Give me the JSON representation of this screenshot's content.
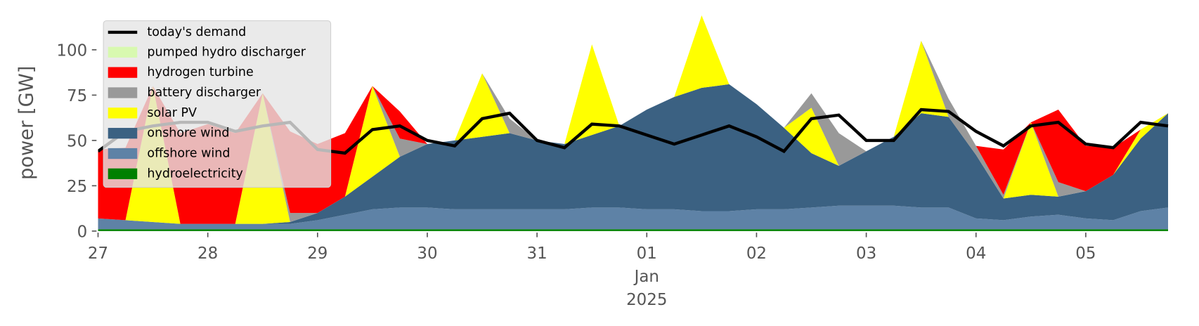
{
  "chart_data": {
    "type": "area",
    "ylabel": "power [GW]",
    "x": [
      0,
      0.25,
      0.5,
      0.75,
      1,
      1.25,
      1.5,
      1.75,
      2,
      2.25,
      2.5,
      2.75,
      3,
      3.25,
      3.5,
      3.75,
      4,
      4.25,
      4.5,
      4.75,
      5,
      5.25,
      5.5,
      5.75,
      6,
      6.25,
      6.5,
      6.75,
      7,
      7.25,
      7.5,
      7.75,
      8,
      8.25,
      8.5,
      8.75,
      9,
      9.25,
      9.5,
      9.75
    ],
    "xlim": [
      0,
      9.95
    ],
    "xticks": [
      {
        "value": 0,
        "label": "27"
      },
      {
        "value": 1,
        "label": "28"
      },
      {
        "value": 2,
        "label": "29"
      },
      {
        "value": 3,
        "label": "30"
      },
      {
        "value": 4,
        "label": "31"
      },
      {
        "value": 5,
        "label": "01"
      },
      {
        "value": 6,
        "label": "02"
      },
      {
        "value": 7,
        "label": "03"
      },
      {
        "value": 8,
        "label": "04"
      },
      {
        "value": 9,
        "label": "05"
      }
    ],
    "xtick_sublabels": [
      "Jan",
      "2025"
    ],
    "ylim": [
      0,
      119
    ],
    "yticks": [
      0,
      25,
      50,
      75,
      100
    ],
    "line": {
      "name": "today's demand",
      "color": "#000000",
      "values": [
        44,
        55,
        58,
        60,
        60,
        55,
        58,
        60,
        45,
        43,
        56,
        58,
        50,
        47,
        62,
        65,
        50,
        46,
        59,
        58,
        53,
        48,
        53,
        58,
        52,
        44,
        62,
        64,
        50,
        50,
        67,
        66,
        55,
        47,
        58,
        60,
        48,
        46,
        60,
        58
      ]
    },
    "series": [
      {
        "name": "pumped hydro discharger",
        "color": "#d8f9b0",
        "values": [
          0,
          0,
          0,
          0,
          0,
          0,
          0,
          0,
          0,
          0,
          0,
          0,
          0,
          0,
          0,
          0,
          0,
          0,
          0,
          0,
          0,
          0,
          0,
          0,
          0,
          0,
          0,
          0,
          0,
          0,
          0,
          0,
          0,
          0,
          0,
          0,
          0,
          0,
          0,
          0
        ]
      },
      {
        "name": "hydrogen turbine",
        "color": "#ff0000",
        "values": [
          38,
          40,
          0,
          50,
          55,
          50,
          0,
          45,
          38,
          35,
          0,
          15,
          0,
          0,
          0,
          0,
          0,
          0,
          0,
          0,
          0,
          0,
          0,
          0,
          0,
          0,
          0,
          0,
          0,
          0,
          0,
          0,
          0,
          25,
          0,
          40,
          25,
          15,
          0,
          0
        ]
      },
      {
        "name": "battery discharger",
        "color": "#999999",
        "values": [
          0,
          0,
          0,
          0,
          0,
          0,
          0,
          5,
          0,
          0,
          0,
          10,
          0,
          0,
          0,
          8,
          0,
          0,
          0,
          0,
          0,
          0,
          0,
          0,
          0,
          0,
          8,
          18,
          0,
          0,
          0,
          10,
          5,
          2,
          0,
          8,
          0,
          0,
          0,
          0
        ]
      },
      {
        "name": "solar PV",
        "color": "#ffff00",
        "values": [
          0,
          0,
          75,
          0,
          0,
          0,
          72,
          0,
          0,
          0,
          50,
          0,
          0,
          0,
          35,
          0,
          0,
          0,
          50,
          0,
          0,
          0,
          40,
          0,
          0,
          0,
          25,
          0,
          0,
          0,
          40,
          0,
          0,
          0,
          40,
          0,
          0,
          0,
          5,
          0
        ]
      },
      {
        "name": "onshore wind",
        "color": "#3b6182",
        "values": [
          0,
          0,
          0,
          0,
          0,
          0,
          0,
          1,
          4,
          10,
          18,
          28,
          35,
          38,
          40,
          42,
          38,
          36,
          40,
          45,
          55,
          62,
          68,
          70,
          58,
          45,
          30,
          22,
          30,
          38,
          52,
          50,
          35,
          12,
          12,
          10,
          15,
          25,
          40,
          52
        ]
      },
      {
        "name": "offshore wind",
        "color": "#5e82a6",
        "values": [
          6,
          5,
          4,
          3,
          3,
          3,
          3,
          3,
          5,
          8,
          11,
          12,
          12,
          11,
          11,
          11,
          11,
          11,
          12,
          12,
          11,
          11,
          10,
          10,
          11,
          11,
          12,
          13,
          13,
          13,
          12,
          12,
          6,
          5,
          7,
          8,
          6,
          5,
          10,
          12
        ]
      },
      {
        "name": "hydroelectricity",
        "color": "#008000",
        "values": [
          1,
          1,
          1,
          1,
          1,
          1,
          1,
          1,
          1,
          1,
          1,
          1,
          1,
          1,
          1,
          1,
          1,
          1,
          1,
          1,
          1,
          1,
          1,
          1,
          1,
          1,
          1,
          1,
          1,
          1,
          1,
          1,
          1,
          1,
          1,
          1,
          1,
          1,
          1,
          1
        ]
      }
    ]
  }
}
